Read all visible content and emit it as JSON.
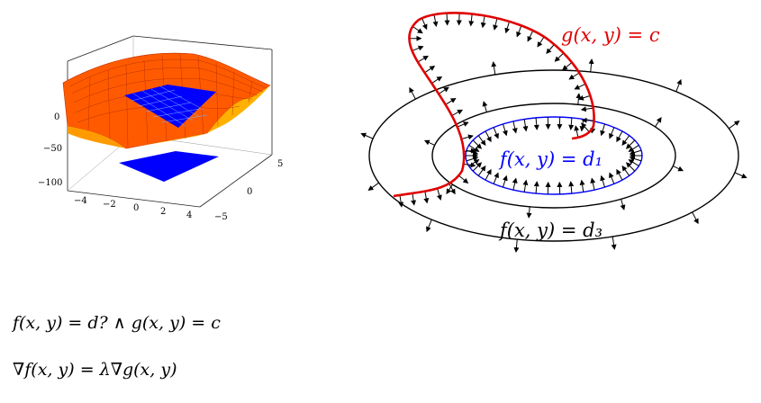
{
  "surface_plot": {
    "z_ticks": [
      "0",
      "−50",
      "−100"
    ],
    "x_ticks": [
      "−4",
      "−2",
      "0",
      "2",
      "4"
    ],
    "y_ticks": [
      "5",
      "0",
      "−5"
    ],
    "surface_color": "#ff5a00",
    "constraint_patch_color": "#0000ff"
  },
  "diagram": {
    "labels": {
      "constraint": "g(x, y) = c",
      "inner_level": "f(x, y) = d₁",
      "outer_level": "f(x, y) = d₃"
    },
    "colors": {
      "constraint": "#e00000",
      "inner_level": "#0000ff",
      "level": "#000000"
    }
  },
  "equations": {
    "condition": "f(x, y) = d? ∧ g(x, y) = c",
    "gradient": "∇f(x, y) = λ∇g(x, y)"
  }
}
